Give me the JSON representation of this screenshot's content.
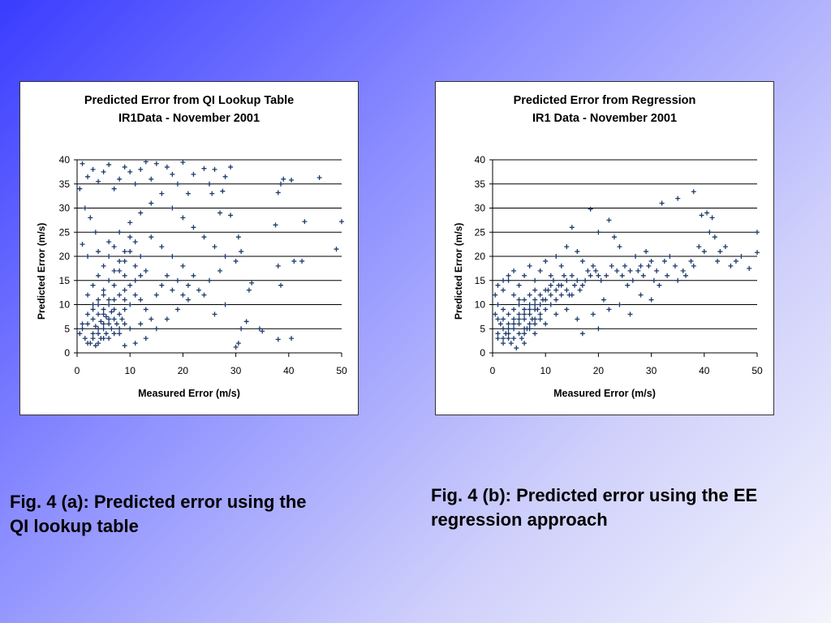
{
  "colors": {
    "marker": "#1f3b6b",
    "gridline": "#000000",
    "panel_bg": "#ffffff"
  },
  "captions": {
    "a_line1": "Fig. 4 (a): Predicted error using the",
    "a_line2": "QI lookup table",
    "b_line1": "Fig. 4 (b): Predicted error using the EE",
    "b_line2": "regression approach"
  },
  "chart_data": [
    {
      "type": "scatter",
      "title_line1": "Predicted Error from QI Lookup Table",
      "title_line2": "IR1Data - November 2001",
      "xlabel": "Measured Error (m/s)",
      "ylabel": "Predicted Error (m/s)",
      "xlim": [
        0,
        50
      ],
      "ylim": [
        0,
        40
      ],
      "xticks": [
        0,
        10,
        20,
        30,
        40,
        50
      ],
      "yticks": [
        0,
        5,
        10,
        15,
        20,
        25,
        30,
        35,
        40
      ],
      "grid": "horizontal",
      "marker": "plus",
      "distribution": "dense cluster near origin (x≈0–15, y≈0–15), wide scatter up to y=40 and x≈50",
      "points": [
        [
          45.8,
          36.3
        ],
        [
          50,
          27.2
        ],
        [
          49,
          21.5
        ],
        [
          43,
          27.2
        ],
        [
          42.5,
          19
        ],
        [
          41,
          19
        ],
        [
          40.5,
          3
        ],
        [
          38,
          2.8
        ],
        [
          38.5,
          14
        ],
        [
          38,
          33.2
        ],
        [
          38.5,
          35
        ],
        [
          39,
          36
        ],
        [
          40.5,
          35.8
        ],
        [
          38,
          18
        ],
        [
          37.5,
          26.5
        ],
        [
          34.5,
          5
        ],
        [
          35,
          4.5
        ],
        [
          33,
          14.5
        ],
        [
          32.5,
          13
        ],
        [
          32,
          6.5
        ],
        [
          31,
          5
        ],
        [
          30.5,
          2
        ],
        [
          30,
          1.2
        ],
        [
          30.5,
          24
        ],
        [
          31,
          21
        ],
        [
          30,
          19
        ],
        [
          29,
          28.5
        ],
        [
          28,
          36.5
        ],
        [
          27.5,
          33.5
        ],
        [
          29,
          38.5
        ],
        [
          26,
          38
        ],
        [
          25.5,
          33
        ],
        [
          24,
          38.2
        ],
        [
          25,
          35
        ],
        [
          27,
          29
        ],
        [
          22,
          37
        ],
        [
          21,
          33
        ],
        [
          20,
          39.5
        ],
        [
          19,
          35
        ],
        [
          18,
          37
        ],
        [
          17,
          38.5
        ],
        [
          15,
          39.2
        ],
        [
          14,
          36
        ],
        [
          13,
          39.6
        ],
        [
          12,
          38
        ],
        [
          11,
          35
        ],
        [
          10,
          37.5
        ],
        [
          9,
          38.5
        ],
        [
          8,
          36
        ],
        [
          7,
          34
        ],
        [
          6,
          39
        ],
        [
          5,
          37.5
        ],
        [
          4,
          35.5
        ],
        [
          3,
          38
        ],
        [
          2,
          36.5
        ],
        [
          1,
          39.2
        ],
        [
          0.5,
          34
        ],
        [
          1.5,
          30
        ],
        [
          2.5,
          28
        ],
        [
          3.5,
          25
        ],
        [
          1,
          22.5
        ],
        [
          2,
          20
        ],
        [
          4,
          21
        ],
        [
          6,
          23
        ],
        [
          8,
          25
        ],
        [
          10,
          27
        ],
        [
          12,
          29
        ],
        [
          14,
          31
        ],
        [
          16,
          33
        ],
        [
          18,
          30
        ],
        [
          20,
          28
        ],
        [
          22,
          26
        ],
        [
          24,
          24
        ],
        [
          26,
          22
        ],
        [
          28,
          20
        ],
        [
          27,
          17
        ],
        [
          25,
          15
        ],
        [
          23,
          13
        ],
        [
          21,
          11
        ],
        [
          19,
          9
        ],
        [
          17,
          7
        ],
        [
          15,
          5
        ],
        [
          13,
          3
        ],
        [
          11,
          2
        ],
        [
          9,
          1.5
        ],
        [
          26,
          8
        ],
        [
          28,
          10
        ],
        [
          24,
          12
        ],
        [
          22,
          16
        ],
        [
          20,
          18
        ],
        [
          18,
          20
        ],
        [
          16,
          22
        ],
        [
          14,
          24
        ],
        [
          12,
          20
        ],
        [
          11,
          18
        ],
        [
          9,
          16
        ],
        [
          7,
          14
        ],
        [
          5,
          12
        ],
        [
          3,
          10
        ],
        [
          2,
          8
        ],
        [
          1,
          6
        ],
        [
          0.5,
          4
        ],
        [
          1.5,
          3
        ],
        [
          2.5,
          2
        ],
        [
          3.5,
          1.5
        ],
        [
          4.5,
          3
        ],
        [
          5.5,
          4
        ],
        [
          6.5,
          5
        ],
        [
          7.5,
          6
        ],
        [
          8.5,
          7
        ],
        [
          4,
          5
        ],
        [
          5,
          6
        ],
        [
          6,
          7
        ],
        [
          3,
          4
        ],
        [
          4,
          8
        ],
        [
          5,
          9
        ],
        [
          6,
          10
        ],
        [
          7,
          11
        ],
        [
          8,
          12
        ],
        [
          9,
          13
        ],
        [
          10,
          14
        ],
        [
          11,
          15
        ],
        [
          12,
          16
        ],
        [
          13,
          17
        ],
        [
          2,
          12
        ],
        [
          3,
          14
        ],
        [
          4,
          16
        ],
        [
          5,
          18
        ],
        [
          6,
          20
        ],
        [
          7,
          22
        ],
        [
          8,
          17
        ],
        [
          9,
          19
        ],
        [
          10,
          21
        ],
        [
          11,
          23
        ],
        [
          12,
          11
        ],
        [
          13,
          9
        ],
        [
          14,
          7
        ],
        [
          15,
          12
        ],
        [
          16,
          14
        ],
        [
          17,
          16
        ],
        [
          18,
          13
        ],
        [
          19,
          15
        ],
        [
          20,
          12
        ],
        [
          21,
          14
        ],
        [
          2,
          2
        ],
        [
          3,
          3
        ],
        [
          4,
          4
        ],
        [
          5,
          5
        ],
        [
          6,
          6
        ],
        [
          7,
          7
        ],
        [
          8,
          8
        ],
        [
          9,
          9
        ],
        [
          10,
          10
        ],
        [
          4,
          2
        ],
        [
          6,
          3
        ],
        [
          8,
          4
        ],
        [
          10,
          5
        ],
        [
          12,
          6
        ],
        [
          3,
          7
        ],
        [
          5,
          8
        ],
        [
          7,
          9
        ],
        [
          9,
          11
        ],
        [
          11,
          12
        ],
        [
          1,
          5
        ],
        [
          2,
          6
        ],
        [
          3,
          9
        ],
        [
          4,
          11
        ],
        [
          5,
          13
        ],
        [
          6,
          15
        ],
        [
          7,
          17
        ],
        [
          8,
          19
        ],
        [
          9,
          21
        ],
        [
          10,
          24
        ],
        [
          4.5,
          6.5
        ],
        [
          5.5,
          7.5
        ],
        [
          3.5,
          5.5
        ],
        [
          6.5,
          8.5
        ],
        [
          5,
          3
        ],
        [
          4,
          10
        ],
        [
          6,
          11
        ],
        [
          7,
          4
        ],
        [
          8,
          5
        ],
        [
          9,
          6
        ]
      ]
    },
    {
      "type": "scatter",
      "title_line1": "Predicted Error from Regression",
      "title_line2": "IR1 Data - November 2001",
      "xlabel": "Measured Error (m/s)",
      "ylabel": "Predicted Error (m/s)",
      "xlim": [
        0,
        50
      ],
      "ylim": [
        0,
        40
      ],
      "xticks": [
        0,
        10,
        20,
        30,
        40,
        50
      ],
      "yticks": [
        0,
        5,
        10,
        15,
        20,
        25,
        30,
        35,
        40
      ],
      "grid": "horizontal",
      "marker": "plus",
      "distribution": "dense cluster near origin, points follow an increasing trend from (0,5) toward (50,22)",
      "points": [
        [
          38,
          33.4
        ],
        [
          35,
          32
        ],
        [
          32,
          31
        ],
        [
          39.5,
          28.5
        ],
        [
          40.5,
          29
        ],
        [
          41.5,
          28
        ],
        [
          50,
          25
        ],
        [
          50,
          20.8
        ],
        [
          48.5,
          17.5
        ],
        [
          46,
          19
        ],
        [
          44,
          22
        ],
        [
          43,
          21
        ],
        [
          42,
          24
        ],
        [
          41,
          25
        ],
        [
          40,
          21
        ],
        [
          38,
          18
        ],
        [
          36,
          17
        ],
        [
          35,
          15
        ],
        [
          33,
          16
        ],
        [
          31,
          17
        ],
        [
          30,
          19
        ],
        [
          29,
          21
        ],
        [
          28,
          18
        ],
        [
          27,
          20
        ],
        [
          26,
          17
        ],
        [
          25,
          18
        ],
        [
          24,
          22
        ],
        [
          23,
          24
        ],
        [
          22,
          27.5
        ],
        [
          20,
          25
        ],
        [
          18.5,
          29.8
        ],
        [
          17,
          19
        ],
        [
          16,
          21
        ],
        [
          15,
          26
        ],
        [
          14,
          22
        ],
        [
          13,
          18
        ],
        [
          12,
          20
        ],
        [
          11,
          16
        ],
        [
          10,
          19
        ],
        [
          9,
          17
        ],
        [
          8,
          15
        ],
        [
          7,
          18
        ],
        [
          6,
          16
        ],
        [
          5,
          14
        ],
        [
          4,
          17
        ],
        [
          3,
          15
        ],
        [
          2,
          13
        ],
        [
          1,
          10
        ],
        [
          0.5,
          8
        ],
        [
          1.5,
          6
        ],
        [
          2.5,
          4
        ],
        [
          3.5,
          2
        ],
        [
          4.5,
          1
        ],
        [
          5.5,
          3
        ],
        [
          6.5,
          5
        ],
        [
          7.5,
          7
        ],
        [
          8.5,
          9
        ],
        [
          9.5,
          11
        ],
        [
          10.5,
          13
        ],
        [
          11.5,
          15
        ],
        [
          12.5,
          14
        ],
        [
          13.5,
          16
        ],
        [
          14.5,
          12
        ],
        [
          15.5,
          14
        ],
        [
          16.5,
          13
        ],
        [
          17.5,
          15
        ],
        [
          18.5,
          16
        ],
        [
          19.5,
          17
        ],
        [
          20.5,
          15
        ],
        [
          21.5,
          16
        ],
        [
          22.5,
          18
        ],
        [
          23.5,
          17
        ],
        [
          24.5,
          16
        ],
        [
          25.5,
          14
        ],
        [
          26.5,
          15
        ],
        [
          27.5,
          17
        ],
        [
          28.5,
          16
        ],
        [
          29.5,
          18
        ],
        [
          30.5,
          15
        ],
        [
          31.5,
          14
        ],
        [
          32.5,
          19
        ],
        [
          33.5,
          20
        ],
        [
          34.5,
          18
        ],
        [
          36.5,
          16
        ],
        [
          37.5,
          19
        ],
        [
          39,
          22
        ],
        [
          42.5,
          19
        ],
        [
          45,
          18
        ],
        [
          47,
          20
        ],
        [
          17,
          4
        ],
        [
          20,
          5
        ],
        [
          22,
          9
        ],
        [
          24,
          10
        ],
        [
          26,
          8
        ],
        [
          28,
          12
        ],
        [
          30,
          11
        ],
        [
          19,
          8
        ],
        [
          21,
          11
        ],
        [
          16,
          7
        ],
        [
          14,
          9
        ],
        [
          12,
          8
        ],
        [
          10,
          6
        ],
        [
          8,
          4
        ],
        [
          6,
          2
        ],
        [
          4,
          3
        ],
        [
          3,
          5
        ],
        [
          2,
          7
        ],
        [
          1,
          3
        ],
        [
          5,
          6
        ],
        [
          6,
          7
        ],
        [
          7,
          8
        ],
        [
          8,
          9
        ],
        [
          9,
          10
        ],
        [
          10,
          11
        ],
        [
          11,
          12
        ],
        [
          12,
          13
        ],
        [
          13,
          14
        ],
        [
          14,
          15
        ],
        [
          15,
          16
        ],
        [
          4,
          9
        ],
        [
          5,
          10
        ],
        [
          6,
          11
        ],
        [
          7,
          12
        ],
        [
          8,
          13
        ],
        [
          3,
          8
        ],
        [
          2,
          9
        ],
        [
          1,
          7
        ],
        [
          0.5,
          12
        ],
        [
          1,
          14
        ],
        [
          2,
          15
        ],
        [
          3,
          16
        ],
        [
          4,
          12
        ],
        [
          5,
          11
        ],
        [
          6,
          9
        ],
        [
          7,
          10
        ],
        [
          8,
          11
        ],
        [
          9,
          12
        ],
        [
          10,
          13
        ],
        [
          11,
          14
        ],
        [
          3,
          6
        ],
        [
          4,
          7
        ],
        [
          5,
          8
        ],
        [
          2,
          5
        ],
        [
          1,
          4
        ],
        [
          6,
          5
        ],
        [
          7,
          6
        ],
        [
          8,
          7
        ],
        [
          9,
          8
        ],
        [
          10,
          9
        ],
        [
          5,
          4
        ],
        [
          4,
          5
        ],
        [
          3,
          3
        ],
        [
          2,
          2
        ],
        [
          6,
          8
        ],
        [
          7,
          5
        ],
        [
          8,
          6
        ],
        [
          9,
          7
        ],
        [
          4,
          6
        ],
        [
          5,
          7
        ],
        [
          3,
          4
        ],
        [
          2,
          3
        ],
        [
          6,
          4
        ],
        [
          7,
          9
        ],
        [
          8,
          10
        ],
        [
          11,
          10
        ],
        [
          12,
          11
        ],
        [
          13,
          12
        ],
        [
          14,
          13
        ],
        [
          15,
          12
        ],
        [
          16,
          15
        ],
        [
          17,
          14
        ],
        [
          18,
          17
        ],
        [
          19,
          18
        ],
        [
          20,
          16
        ]
      ]
    }
  ]
}
